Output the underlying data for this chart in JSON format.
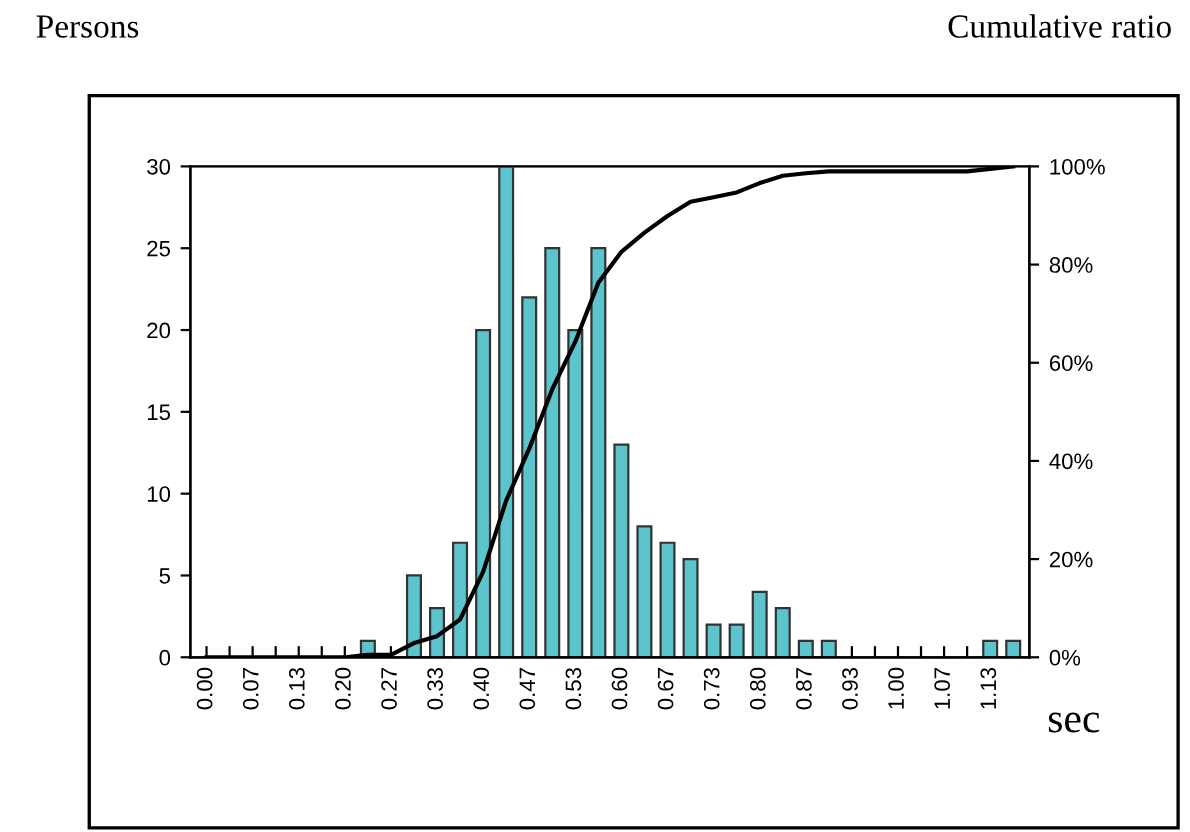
{
  "chart_data": {
    "type": "bar",
    "ylabel": "Persons",
    "y2label": "Cumulative ratio",
    "xlabel": "sec",
    "categories": [
      "0.00",
      null,
      "0.07",
      null,
      "0.13",
      null,
      "0.20",
      null,
      "0.27",
      null,
      "0.33",
      null,
      "0.40",
      null,
      "0.47",
      null,
      "0.53",
      null,
      "0.60",
      null,
      "0.67",
      null,
      "0.73",
      null,
      "0.80",
      null,
      "0.87",
      null,
      "0.93",
      null,
      "1.00",
      null,
      "1.07",
      null,
      "1.13",
      null
    ],
    "series": [
      {
        "color": "#5bc4cc",
        "values": [
          0,
          0,
          0,
          0,
          0,
          0,
          0,
          1,
          0,
          5,
          3,
          7,
          20,
          30,
          22,
          25,
          20,
          25,
          13,
          8,
          7,
          6,
          2,
          2,
          4,
          3,
          1,
          1,
          0,
          0,
          0,
          0,
          0,
          0,
          1,
          1
        ]
      },
      {
        "type": "line",
        "axis": "y2",
        "color": "#000000",
        "values": [
          0,
          0,
          0,
          0,
          0,
          0,
          0,
          0.5,
          0.5,
          2.9,
          4.3,
          7.7,
          17.4,
          31.9,
          42.5,
          54.6,
          64.3,
          76.3,
          82.6,
          86.5,
          89.9,
          92.8,
          93.7,
          94.7,
          96.6,
          98.1,
          98.6,
          99,
          99,
          99,
          99,
          99,
          99,
          99,
          99.5,
          100
        ]
      }
    ],
    "ylim": [
      0,
      30
    ],
    "yticks": [
      0,
      5,
      10,
      15,
      20,
      25,
      30
    ],
    "y2lim": [
      0,
      100
    ],
    "y2ticks": [
      {
        "value": 0,
        "label": "0%"
      },
      {
        "value": 20,
        "label": "20%"
      },
      {
        "value": 40,
        "label": "40%"
      },
      {
        "value": 60,
        "label": "60%"
      },
      {
        "value": 80,
        "label": "80%"
      },
      {
        "value": 100,
        "label": "100%"
      }
    ],
    "grid": false,
    "legend": false,
    "marker": "none",
    "line_style": "solid"
  }
}
